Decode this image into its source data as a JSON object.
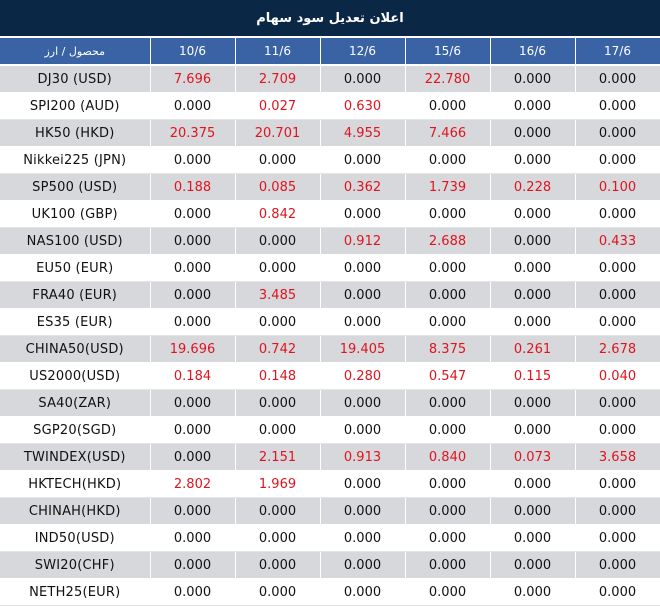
{
  "title": "اعلان تعديل سود سهام",
  "header": {
    "first_col": "محصول / ارز",
    "dates": [
      "10/6",
      "11/6",
      "12/6",
      "15/6",
      "16/6",
      "17/6"
    ]
  },
  "rows": [
    {
      "symbol": "DJ30 (USD)",
      "values": [
        "7.696",
        "2.709",
        "0.000",
        "22.780",
        "0.000",
        "0.000"
      ]
    },
    {
      "symbol": "SPI200 (AUD)",
      "values": [
        "0.000",
        "0.027",
        "0.630",
        "0.000",
        "0.000",
        "0.000"
      ]
    },
    {
      "symbol": "HK50 (HKD)",
      "values": [
        "20.375",
        "20.701",
        "4.955",
        "7.466",
        "0.000",
        "0.000"
      ]
    },
    {
      "symbol": "Nikkei225 (JPN)",
      "values": [
        "0.000",
        "0.000",
        "0.000",
        "0.000",
        "0.000",
        "0.000"
      ]
    },
    {
      "symbol": "SP500 (USD)",
      "values": [
        "0.188",
        "0.085",
        "0.362",
        "1.739",
        "0.228",
        "0.100"
      ]
    },
    {
      "symbol": "UK100 (GBP)",
      "values": [
        "0.000",
        "0.842",
        "0.000",
        "0.000",
        "0.000",
        "0.000"
      ]
    },
    {
      "symbol": "NAS100 (USD)",
      "values": [
        "0.000",
        "0.000",
        "0.912",
        "2.688",
        "0.000",
        "0.433"
      ]
    },
    {
      "symbol": "EU50 (EUR)",
      "values": [
        "0.000",
        "0.000",
        "0.000",
        "0.000",
        "0.000",
        "0.000"
      ]
    },
    {
      "symbol": "FRA40 (EUR)",
      "values": [
        "0.000",
        "3.485",
        "0.000",
        "0.000",
        "0.000",
        "0.000"
      ]
    },
    {
      "symbol": "ES35 (EUR)",
      "values": [
        "0.000",
        "0.000",
        "0.000",
        "0.000",
        "0.000",
        "0.000"
      ]
    },
    {
      "symbol": "CHINA50(USD)",
      "values": [
        "19.696",
        "0.742",
        "19.405",
        "8.375",
        "0.261",
        "2.678"
      ]
    },
    {
      "symbol": "US2000(USD)",
      "values": [
        "0.184",
        "0.148",
        "0.280",
        "0.547",
        "0.115",
        "0.040"
      ]
    },
    {
      "symbol": "SA40(ZAR)",
      "values": [
        "0.000",
        "0.000",
        "0.000",
        "0.000",
        "0.000",
        "0.000"
      ]
    },
    {
      "symbol": "SGP20(SGD)",
      "values": [
        "0.000",
        "0.000",
        "0.000",
        "0.000",
        "0.000",
        "0.000"
      ]
    },
    {
      "symbol": "TWINDEX(USD)",
      "values": [
        "0.000",
        "2.151",
        "0.913",
        "0.840",
        "0.073",
        "3.658"
      ]
    },
    {
      "symbol": "HKTECH(HKD)",
      "values": [
        "2.802",
        "1.969",
        "0.000",
        "0.000",
        "0.000",
        "0.000"
      ]
    },
    {
      "symbol": "CHINAH(HKD)",
      "values": [
        "0.000",
        "0.000",
        "0.000",
        "0.000",
        "0.000",
        "0.000"
      ]
    },
    {
      "symbol": "IND50(USD)",
      "values": [
        "0.000",
        "0.000",
        "0.000",
        "0.000",
        "0.000",
        "0.000"
      ]
    },
    {
      "symbol": "SWI20(CHF)",
      "values": [
        "0.000",
        "0.000",
        "0.000",
        "0.000",
        "0.000",
        "0.000"
      ]
    },
    {
      "symbol": "NETH25(EUR)",
      "values": [
        "0.000",
        "0.000",
        "0.000",
        "0.000",
        "0.000",
        "0.000"
      ]
    }
  ],
  "colors": {
    "title_bg": "#0b2746",
    "header_bg": "#3a63a6",
    "row_shade": "#d6d8dc",
    "nonzero_text": "#e0141e"
  }
}
